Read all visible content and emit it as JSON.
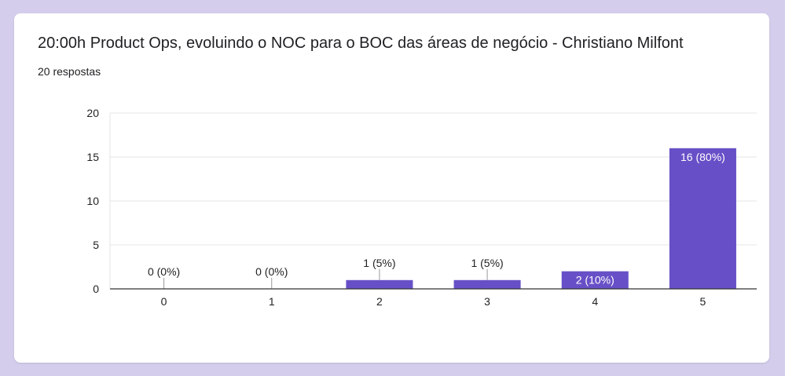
{
  "question": {
    "title": "20:00h Product Ops, evoluindo o NOC para o BOC das áreas de negócio - Christiano Milfont",
    "response_count": "20 respostas"
  },
  "colors": {
    "bar": "#6750c7",
    "background": "#d4cdec",
    "card": "#ffffff"
  },
  "chart_data": {
    "type": "bar",
    "categories": [
      "0",
      "1",
      "2",
      "3",
      "4",
      "5"
    ],
    "values": [
      0,
      0,
      1,
      1,
      2,
      16
    ],
    "data_labels": [
      "0 (0%)",
      "0 (0%)",
      "1 (5%)",
      "1 (5%)",
      "2 (10%)",
      "16 (80%)"
    ],
    "yticks": [
      "0",
      "5",
      "10",
      "15",
      "20"
    ],
    "ylim": [
      0,
      20
    ],
    "grid": true
  }
}
